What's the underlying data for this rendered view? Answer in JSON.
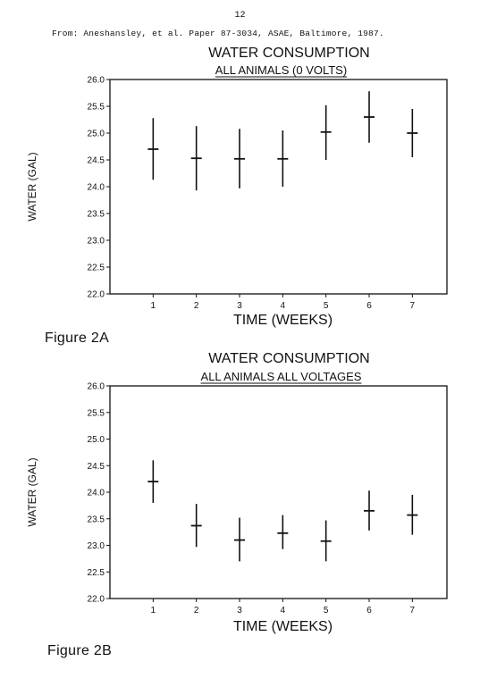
{
  "page_number": "12",
  "source_line": "From: Aneshansley, et al. Paper 87-3034, ASAE, Baltimore, 1987.",
  "figures": [
    {
      "caption": "Figure 2A"
    },
    {
      "caption": "Figure 2B"
    }
  ],
  "chart_data": [
    {
      "type": "scatter",
      "error_bars": true,
      "title": "WATER CONSUMPTION",
      "subtitle": "ALL ANIMALS (0 VOLTS)",
      "xlabel": "TIME (WEEKS)",
      "ylabel": "WATER (GAL)",
      "xlim": [
        0,
        7.8
      ],
      "ylim": [
        22.0,
        26.0
      ],
      "x_ticks": [
        "1",
        "2",
        "3",
        "4",
        "5",
        "6",
        "7"
      ],
      "y_ticks": [
        "22.0",
        "22.5",
        "23.0",
        "23.5",
        "24.0",
        "24.5",
        "25.0",
        "25.5",
        "26.0"
      ],
      "grid": false,
      "x": [
        1,
        2,
        3,
        4,
        5,
        6,
        7
      ],
      "values": [
        24.7,
        24.53,
        24.52,
        24.52,
        25.02,
        25.3,
        25.0
      ],
      "low": [
        24.13,
        23.93,
        23.97,
        24.0,
        24.5,
        24.82,
        24.55
      ],
      "high": [
        25.28,
        25.13,
        25.08,
        25.05,
        25.52,
        25.78,
        25.45
      ]
    },
    {
      "type": "scatter",
      "error_bars": true,
      "title": "WATER CONSUMPTION",
      "subtitle": "ALL ANIMALS ALL VOLTAGES",
      "xlabel": "TIME (WEEKS)",
      "ylabel": "WATER (GAL)",
      "xlim": [
        0,
        7.8
      ],
      "ylim": [
        22.0,
        26.0
      ],
      "x_ticks": [
        "1",
        "2",
        "3",
        "4",
        "5",
        "6",
        "7"
      ],
      "y_ticks": [
        "22.0",
        "22.5",
        "23.0",
        "23.5",
        "24.0",
        "24.5",
        "25.0",
        "25.5",
        "26.0"
      ],
      "grid": false,
      "x": [
        1,
        2,
        3,
        4,
        5,
        6,
        7
      ],
      "values": [
        24.2,
        23.37,
        23.1,
        23.23,
        23.08,
        23.65,
        23.57
      ],
      "low": [
        23.8,
        22.97,
        22.7,
        22.93,
        22.7,
        23.28,
        23.2
      ],
      "high": [
        24.6,
        23.78,
        23.52,
        23.57,
        23.47,
        24.03,
        23.95
      ]
    }
  ]
}
